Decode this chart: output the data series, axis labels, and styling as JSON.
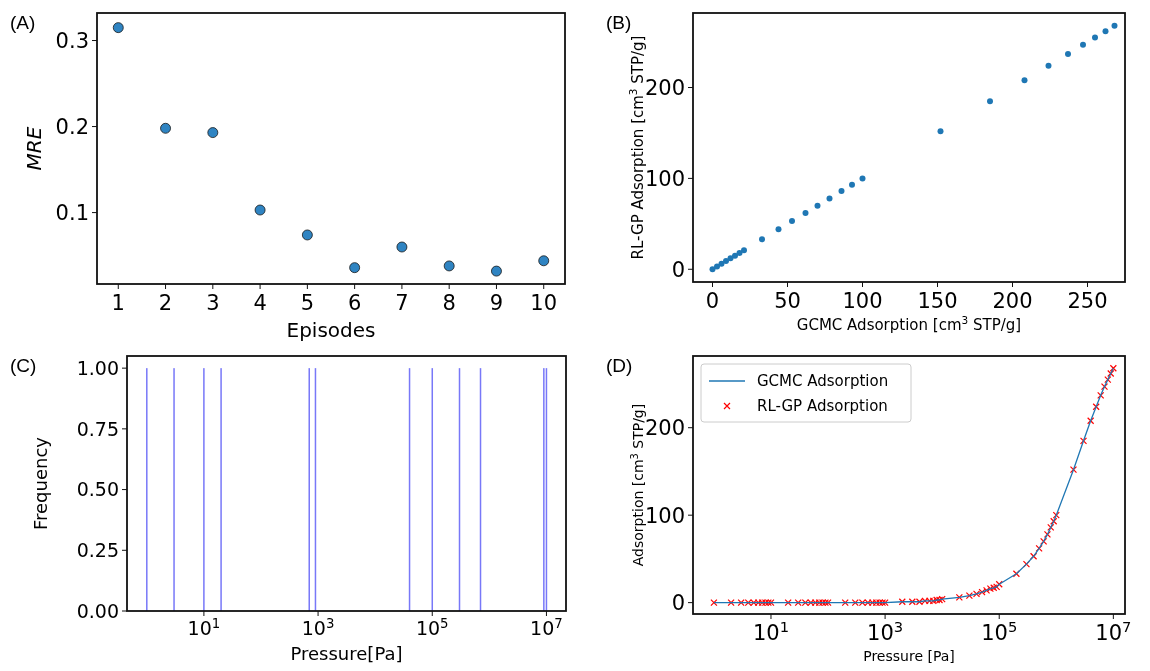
{
  "chart_data": [
    {
      "type": "scatter",
      "title": "(A)",
      "xlabel": "Episodes",
      "ylabel": "MRE",
      "x": [
        1,
        2,
        3,
        4,
        5,
        6,
        7,
        8,
        9,
        10
      ],
      "values": [
        0.315,
        0.198,
        0.193,
        0.103,
        0.074,
        0.036,
        0.06,
        0.038,
        0.032,
        0.044
      ],
      "color": "#2f84c2",
      "xlim": [
        0.55,
        10.45
      ],
      "xticks": [
        1,
        2,
        3,
        4,
        5,
        6,
        7,
        8,
        9,
        10
      ],
      "ylim": [
        0.017,
        0.332
      ],
      "yticks": [
        0.1,
        0.2,
        0.3
      ],
      "marker": "circle",
      "grid": false,
      "legend": false
    },
    {
      "type": "scatter",
      "title": "(B)",
      "xlabel": "GCMC Adsorption [cm$^{3}$ STP/g]",
      "ylabel": "RL-GP Adsorption [cm$^{3}$ STP/g]",
      "x": [
        0,
        3,
        6,
        9,
        12,
        15,
        18,
        21,
        33,
        44,
        53,
        62,
        70,
        78,
        86,
        93,
        100,
        152,
        185,
        208,
        224,
        237,
        247,
        255,
        262,
        268
      ],
      "values": [
        0,
        3,
        6,
        9,
        12,
        15,
        18,
        21,
        33,
        44,
        53,
        62,
        70,
        78,
        86,
        93,
        100,
        152,
        185,
        208,
        224,
        237,
        247,
        255,
        262,
        268
      ],
      "color": "#1f77b4",
      "xlim": [
        -13,
        275
      ],
      "xticks": [
        0,
        50,
        100,
        150,
        200,
        250
      ],
      "ylim": [
        -14,
        282
      ],
      "yticks": [
        0,
        100,
        200
      ],
      "marker": "circle",
      "grid": false,
      "legend": false
    },
    {
      "type": "bar",
      "title": "(C)",
      "xlabel": "Pressure[Pa]",
      "ylabel": "Frequency",
      "x": [
        1,
        3,
        10,
        20,
        700,
        900,
        40000,
        100000,
        300000,
        700000,
        9000000,
        10000000
      ],
      "values": [
        1,
        1,
        1,
        1,
        1,
        1,
        1,
        1,
        1,
        1,
        1,
        1
      ],
      "color": "#7878f8",
      "log": "x",
      "xlim": [
        0.45,
        22000000
      ],
      "xticks": [
        {
          "value": 10,
          "label": "10$^{1}$"
        },
        {
          "value": 1000,
          "label": "10$^{3}$"
        },
        {
          "value": 100000,
          "label": "10$^{5}$"
        },
        {
          "value": 10000000,
          "label": "10$^{7}$"
        }
      ],
      "ylim": [
        0,
        1.05
      ],
      "yticks": [
        {
          "value": 0,
          "label": "0.00"
        },
        {
          "value": 0.25,
          "label": "0.25"
        },
        {
          "value": 0.5,
          "label": "0.50"
        },
        {
          "value": 0.75,
          "label": "0.75"
        },
        {
          "value": 1,
          "label": "1.00"
        }
      ],
      "grid": false,
      "legend": false
    },
    {
      "type": "line",
      "title": "(D)",
      "xlabel": "Pressure [Pa]",
      "ylabel": "Adsorption [cm$^{3}$ STP/g]",
      "x": [
        1,
        2,
        3,
        4,
        5,
        6,
        7,
        8,
        9,
        10,
        20,
        30,
        40,
        50,
        60,
        70,
        80,
        90,
        100,
        200,
        300,
        400,
        500,
        600,
        700,
        800,
        900,
        1000,
        2000,
        3000,
        4000,
        5000,
        6000,
        7000,
        8000,
        9000,
        10000,
        20000,
        30000,
        40000,
        50000,
        60000,
        70000,
        80000,
        90000,
        100000,
        200000,
        300000,
        400000,
        500000,
        600000,
        700000,
        800000,
        900000,
        1000000,
        2000000,
        3000000,
        4000000,
        5000000,
        6000000,
        7000000,
        8000000,
        9000000,
        10000000
      ],
      "log": "x",
      "legend": "top left",
      "grid": false,
      "series": [
        {
          "name": "GCMC Adsorption",
          "color": "#1f77b4",
          "marker": "none",
          "values": [
            0,
            0,
            0,
            0,
            0,
            0,
            0,
            0,
            0,
            0,
            0,
            0,
            0,
            0,
            0,
            0,
            0,
            0,
            0,
            0,
            0,
            0,
            0,
            0,
            0,
            0,
            0,
            0,
            1,
            1,
            1,
            2,
            2,
            2,
            3,
            3,
            4,
            6,
            8,
            10,
            12,
            14,
            16,
            17,
            18,
            21,
            33,
            44,
            53,
            62,
            70,
            78,
            86,
            93,
            100,
            152,
            185,
            208,
            224,
            237,
            247,
            255,
            262,
            268
          ]
        },
        {
          "name": "RL-GP Adsorption",
          "type": "scatter",
          "color": "#ff0000",
          "marker": "cross",
          "values": [
            0,
            0,
            0,
            0,
            0,
            0,
            0,
            0,
            0,
            0,
            0,
            0,
            0,
            0,
            0,
            0,
            0,
            0,
            0,
            0,
            0,
            0,
            0,
            0,
            0,
            0,
            0,
            0,
            1,
            1,
            1,
            2,
            2,
            2,
            3,
            3,
            4,
            6,
            8,
            10,
            12,
            14,
            16,
            17,
            18,
            21,
            33,
            44,
            53,
            62,
            70,
            78,
            86,
            93,
            100,
            152,
            185,
            208,
            224,
            237,
            247,
            255,
            262,
            268
          ]
        }
      ],
      "xlim": [
        0.43,
        16000000
      ],
      "xticks": [
        {
          "value": 10,
          "label": "10$^{1}$"
        },
        {
          "value": 1000,
          "label": "10$^{3}$"
        },
        {
          "value": 100000,
          "label": "10$^{5}$"
        },
        {
          "value": 10000000,
          "label": "10$^{7}$"
        }
      ],
      "ylim": [
        -13,
        282
      ],
      "yticks": [
        0,
        100,
        200
      ]
    }
  ]
}
